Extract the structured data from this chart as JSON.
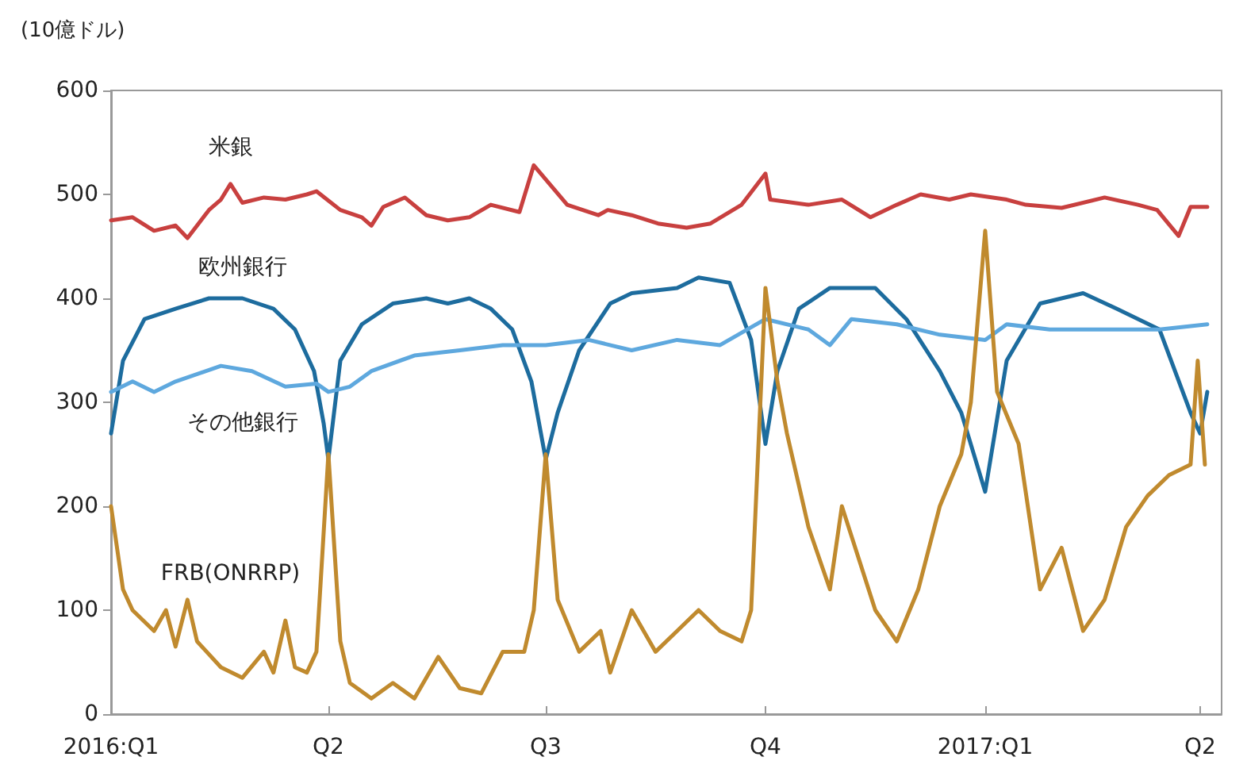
{
  "chart_data": {
    "type": "line",
    "ylabel": "(10億ドル)",
    "xlim": [
      "2016-01-01",
      "2017-04-10"
    ],
    "xticks": [
      {
        "value": "2016-01-01",
        "label": "2016:Q1"
      },
      {
        "value": "2016-04-01",
        "label": "Q2"
      },
      {
        "value": "2016-07-01",
        "label": "Q3"
      },
      {
        "value": "2016-10-01",
        "label": "Q4"
      },
      {
        "value": "2017-01-01",
        "label": "2017:Q1"
      },
      {
        "value": "2017-04-01",
        "label": "Q2"
      }
    ],
    "ylim": [
      0,
      600
    ],
    "yticks": [
      0,
      100,
      200,
      300,
      400,
      500,
      600
    ],
    "grid": false,
    "legend": false,
    "marker": "none",
    "line_style": "solid",
    "series": [
      {
        "name": "米銀",
        "color": "#c8403f",
        "x": [
          "2016-01-01",
          "2016-01-10",
          "2016-01-19",
          "2016-01-28",
          "2016-02-02",
          "2016-02-11",
          "2016-02-16",
          "2016-02-20",
          "2016-02-25",
          "2016-03-05",
          "2016-03-14",
          "2016-03-23",
          "2016-03-27",
          "2016-04-06",
          "2016-04-15",
          "2016-04-19",
          "2016-04-24",
          "2016-05-03",
          "2016-05-12",
          "2016-05-21",
          "2016-05-30",
          "2016-06-08",
          "2016-06-20",
          "2016-06-26",
          "2016-07-10",
          "2016-07-23",
          "2016-07-27",
          "2016-08-06",
          "2016-08-17",
          "2016-08-29",
          "2016-09-08",
          "2016-09-21",
          "2016-10-01",
          "2016-10-03",
          "2016-10-19",
          "2016-11-02",
          "2016-11-14",
          "2016-11-25",
          "2016-12-05",
          "2016-12-17",
          "2016-12-26",
          "2017-01-10",
          "2017-01-18",
          "2017-02-02",
          "2017-02-20",
          "2017-03-06",
          "2017-03-14",
          "2017-03-23",
          "2017-03-28",
          "2017-04-04"
        ],
        "values": [
          475,
          478,
          465,
          470,
          458,
          485,
          495,
          510,
          492,
          497,
          495,
          500,
          503,
          485,
          478,
          470,
          488,
          497,
          480,
          475,
          478,
          490,
          483,
          528,
          490,
          480,
          485,
          480,
          472,
          468,
          472,
          490,
          520,
          495,
          490,
          495,
          478,
          490,
          500,
          495,
          500,
          495,
          490,
          487,
          497,
          490,
          485,
          460,
          488,
          488
        ]
      },
      {
        "name": "欧州銀行",
        "color": "#1d6c9e",
        "x": [
          "2016-01-01",
          "2016-01-06",
          "2016-01-15",
          "2016-01-28",
          "2016-02-11",
          "2016-02-25",
          "2016-03-09",
          "2016-03-18",
          "2016-03-26",
          "2016-03-30",
          "2016-04-01",
          "2016-04-06",
          "2016-04-15",
          "2016-04-28",
          "2016-05-12",
          "2016-05-21",
          "2016-05-30",
          "2016-06-08",
          "2016-06-17",
          "2016-06-25",
          "2016-07-01",
          "2016-07-06",
          "2016-07-15",
          "2016-07-28",
          "2016-08-06",
          "2016-08-25",
          "2016-09-03",
          "2016-09-16",
          "2016-09-25",
          "2016-10-01",
          "2016-10-06",
          "2016-10-15",
          "2016-10-28",
          "2016-11-16",
          "2016-11-29",
          "2016-12-13",
          "2016-12-22",
          "2017-01-01",
          "2017-01-10",
          "2017-01-24",
          "2017-02-11",
          "2017-02-25",
          "2017-03-15",
          "2017-03-28",
          "2017-04-01",
          "2017-04-04"
        ],
        "values": [
          270,
          340,
          380,
          390,
          400,
          400,
          390,
          370,
          330,
          280,
          245,
          340,
          375,
          395,
          400,
          395,
          400,
          390,
          370,
          320,
          245,
          290,
          350,
          395,
          405,
          410,
          420,
          415,
          360,
          260,
          330,
          390,
          410,
          410,
          380,
          330,
          290,
          214,
          340,
          395,
          405,
          390,
          370,
          290,
          270,
          310
        ]
      },
      {
        "name": "その他銀行",
        "color": "#5ea8de",
        "x": [
          "2016-01-01",
          "2016-01-10",
          "2016-01-19",
          "2016-01-28",
          "2016-02-16",
          "2016-02-29",
          "2016-03-14",
          "2016-03-27",
          "2016-04-01",
          "2016-04-10",
          "2016-04-19",
          "2016-05-07",
          "2016-05-26",
          "2016-06-13",
          "2016-07-01",
          "2016-07-19",
          "2016-08-06",
          "2016-08-25",
          "2016-09-12",
          "2016-10-01",
          "2016-10-19",
          "2016-10-28",
          "2016-11-06",
          "2016-11-25",
          "2016-12-13",
          "2017-01-01",
          "2017-01-10",
          "2017-01-28",
          "2017-02-25",
          "2017-03-15",
          "2017-04-04"
        ],
        "values": [
          310,
          320,
          310,
          320,
          335,
          330,
          315,
          318,
          310,
          315,
          330,
          345,
          350,
          355,
          355,
          360,
          350,
          360,
          355,
          380,
          370,
          355,
          380,
          375,
          365,
          360,
          375,
          370,
          370,
          370,
          375
        ]
      },
      {
        "name": "FRB(ONRRP)",
        "color": "#c08a2e",
        "x": [
          "2016-01-01",
          "2016-01-06",
          "2016-01-10",
          "2016-01-19",
          "2016-01-24",
          "2016-01-28",
          "2016-02-02",
          "2016-02-06",
          "2016-02-16",
          "2016-02-25",
          "2016-03-05",
          "2016-03-09",
          "2016-03-14",
          "2016-03-18",
          "2016-03-23",
          "2016-03-27",
          "2016-04-01",
          "2016-04-06",
          "2016-04-10",
          "2016-04-19",
          "2016-04-28",
          "2016-05-07",
          "2016-05-17",
          "2016-05-26",
          "2016-06-04",
          "2016-06-13",
          "2016-06-22",
          "2016-06-26",
          "2016-07-01",
          "2016-07-06",
          "2016-07-15",
          "2016-07-24",
          "2016-07-28",
          "2016-08-06",
          "2016-08-16",
          "2016-08-25",
          "2016-09-03",
          "2016-09-12",
          "2016-09-21",
          "2016-09-25",
          "2016-10-01",
          "2016-10-06",
          "2016-10-10",
          "2016-10-19",
          "2016-10-28",
          "2016-11-02",
          "2016-11-16",
          "2016-11-25",
          "2016-12-04",
          "2016-12-13",
          "2016-12-22",
          "2016-12-26",
          "2017-01-01",
          "2017-01-06",
          "2017-01-15",
          "2017-01-24",
          "2017-02-02",
          "2017-02-11",
          "2017-02-20",
          "2017-03-01",
          "2017-03-10",
          "2017-03-19",
          "2017-03-28",
          "2017-03-31",
          "2017-04-03"
        ],
        "values": [
          200,
          120,
          100,
          80,
          100,
          65,
          110,
          70,
          45,
          35,
          60,
          40,
          90,
          45,
          40,
          60,
          250,
          70,
          30,
          15,
          30,
          15,
          55,
          25,
          20,
          60,
          60,
          100,
          250,
          110,
          60,
          80,
          40,
          100,
          60,
          80,
          100,
          80,
          70,
          100,
          410,
          320,
          270,
          180,
          120,
          200,
          100,
          70,
          120,
          200,
          250,
          300,
          465,
          310,
          260,
          120,
          160,
          80,
          110,
          180,
          210,
          230,
          240,
          340,
          240
        ]
      }
    ]
  }
}
